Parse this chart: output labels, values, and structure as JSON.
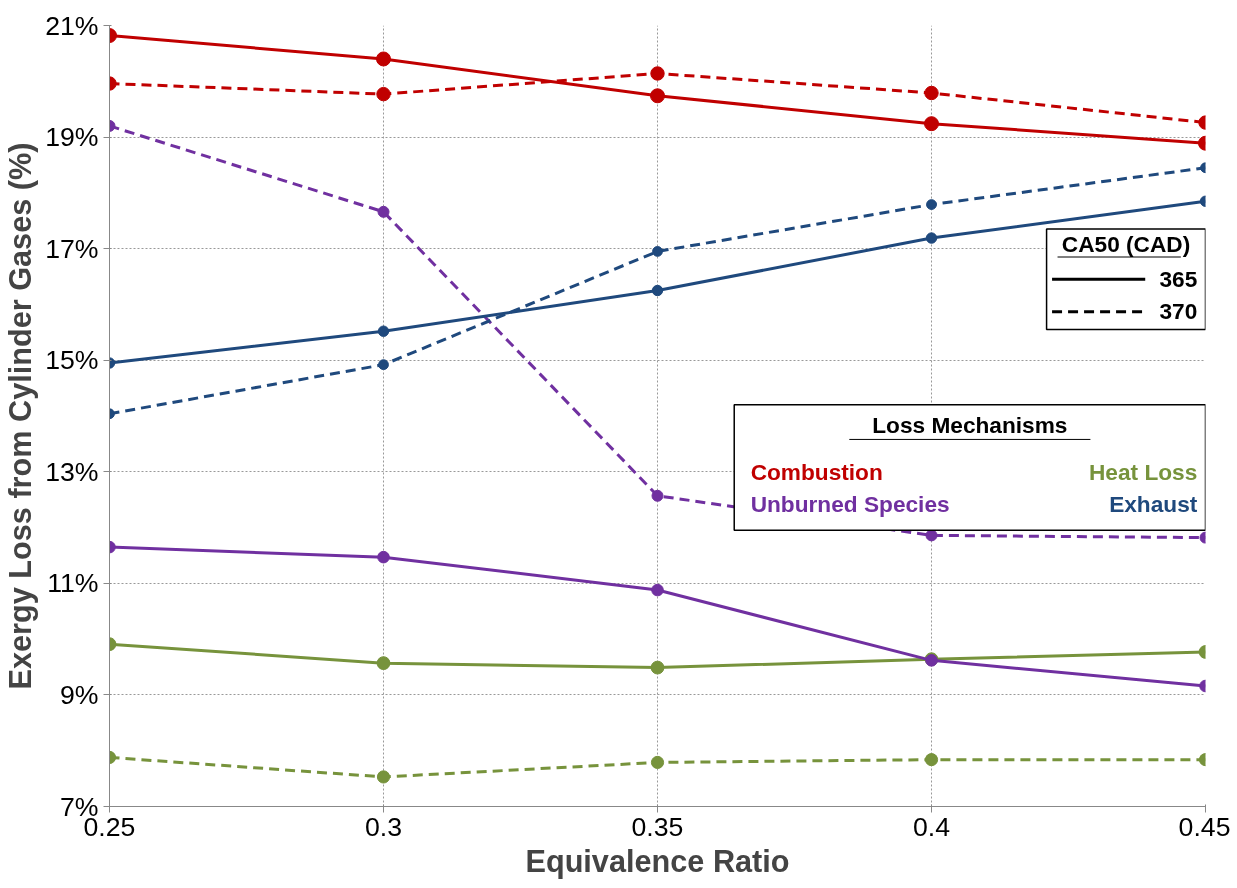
{
  "chart_data": {
    "type": "line",
    "xlabel": "Equivalence Ratio",
    "ylabel": "Exergy Loss from Cylinder Gases (%)",
    "x": [
      0.25,
      0.3,
      0.35,
      0.4,
      0.45
    ],
    "series": [
      {
        "name": "Combustion",
        "color": "#c00000",
        "line_style": "solid",
        "values": [
          20.82,
          20.4,
          19.74,
          19.24,
          18.89
        ]
      },
      {
        "color": "#c00000",
        "line_style": "dashed",
        "values": [
          19.96,
          19.77,
          20.14,
          19.79,
          19.26
        ]
      },
      {
        "name": "Heat Loss",
        "color": "#77933c",
        "line_style": "solid",
        "values": [
          9.91,
          9.57,
          9.49,
          9.64,
          9.77
        ]
      },
      {
        "color": "#77933c",
        "line_style": "dashed",
        "values": [
          7.88,
          7.53,
          7.79,
          7.84,
          7.84
        ]
      },
      {
        "name": "Unburned Species",
        "color": "#7030a0",
        "line_style": "solid",
        "values": [
          11.65,
          11.47,
          10.88,
          9.62,
          9.16
        ]
      },
      {
        "color": "#7030a0",
        "line_style": "dashed",
        "values": [
          19.2,
          17.66,
          12.57,
          11.86,
          11.82
        ]
      },
      {
        "name": "Exhaust",
        "color": "#1f497d",
        "line_style": "solid",
        "values": [
          14.95,
          15.52,
          16.25,
          17.19,
          17.85
        ]
      },
      {
        "color": "#1f497d",
        "line_style": "dashed",
        "values": [
          14.04,
          14.92,
          16.95,
          17.79,
          18.45
        ]
      }
    ],
    "xlim": [
      0.25,
      0.45
    ],
    "xticks": [
      0.25,
      0.3,
      0.35,
      0.4,
      0.45
    ],
    "ylim": [
      7,
      21
    ],
    "yticks": [
      {
        "value": 7,
        "label": "7%"
      },
      {
        "value": 9,
        "label": "9%"
      },
      {
        "value": 11,
        "label": "11%"
      },
      {
        "value": 13,
        "label": "13%"
      },
      {
        "value": 15,
        "label": "15%"
      },
      {
        "value": 17,
        "label": "17%"
      },
      {
        "value": 19,
        "label": "19%"
      },
      {
        "value": 21,
        "label": "21%"
      }
    ],
    "grid": true,
    "marker": "circle",
    "legend": "right",
    "legend_title": "Loss Mechanisms",
    "annotations": [
      "CA50 (CAD)",
      "365",
      "370"
    ]
  }
}
